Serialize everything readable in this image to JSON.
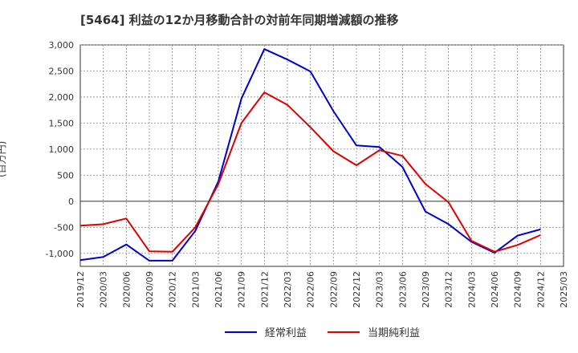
{
  "title": "[5464]  利益の12か月移動合計の対前年同期増減額の推移",
  "y_unit": "(百万円)",
  "chart_data": {
    "type": "line",
    "title": "[5464]  利益の12か月移動合計の対前年同期増減額の推移",
    "xlabel": "",
    "ylabel": "(百万円)",
    "ylim": [
      -1250,
      3000
    ],
    "yticks": [
      3000,
      2500,
      2000,
      1500,
      1000,
      500,
      0,
      -500,
      -1000
    ],
    "ytick_labels": [
      "3,000",
      "2,500",
      "2,000",
      "1,500",
      "1,000",
      "500",
      "0",
      "-500",
      "-1,000"
    ],
    "categories": [
      "2019/12",
      "2020/03",
      "2020/06",
      "2020/09",
      "2020/12",
      "2021/03",
      "2021/06",
      "2021/09",
      "2021/12",
      "2022/03",
      "2022/06",
      "2022/09",
      "2022/12",
      "2023/03",
      "2023/06",
      "2023/09",
      "2023/12",
      "2024/03",
      "2024/06",
      "2024/09",
      "2024/12",
      "2025/03"
    ],
    "series": [
      {
        "name": "経常利益",
        "color": "#0000cc",
        "values": [
          -1130,
          -1070,
          -830,
          -1140,
          -1140,
          -570,
          380,
          1970,
          2920,
          2720,
          2490,
          1730,
          1070,
          1040,
          660,
          -200,
          -440,
          -780,
          -990,
          -660,
          -540,
          null
        ]
      },
      {
        "name": "当期純利益",
        "color": "#dd0000",
        "values": [
          -470,
          -440,
          -330,
          -960,
          -970,
          -500,
          330,
          1500,
          2090,
          1850,
          1420,
          960,
          690,
          980,
          870,
          330,
          -20,
          -760,
          -970,
          -840,
          -650,
          null
        ]
      }
    ],
    "grid": true,
    "legend": "bottom"
  }
}
